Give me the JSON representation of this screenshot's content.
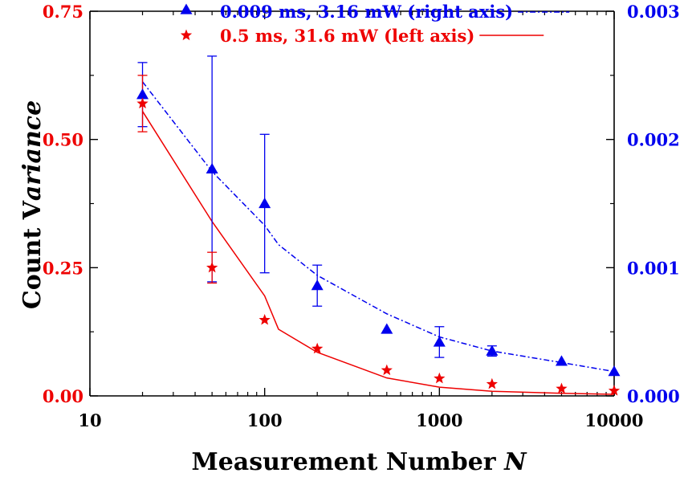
{
  "chart_data": {
    "type": "scatter",
    "xscale": "log",
    "x": [
      20,
      50,
      100,
      200,
      500,
      1000,
      2000,
      5000,
      10000
    ],
    "xlim": [
      10,
      10000
    ],
    "x_tick_labels": [
      "10",
      "100",
      "1000",
      "10000"
    ],
    "xlabel": "Measurement Number",
    "xlabel_symbol": "N",
    "ylabel_left_main": "Count V",
    "ylabel_left_italic": "ariance",
    "ylim_left": [
      0,
      0.75
    ],
    "left_tick_labels": [
      "0.00",
      "0.25",
      "0.50",
      "0.75"
    ],
    "ylim_right": [
      0,
      0.003
    ],
    "right_tick_labels": [
      "0.000",
      "0.001",
      "0.002",
      "0.003"
    ],
    "series": [
      {
        "name": "0.009 ms, 3.16 mW (right axis)",
        "axis": "right",
        "marker": "triangle",
        "color": "#0000ee",
        "values": [
          0.00235,
          0.00177,
          0.0015,
          0.00086,
          0.00052,
          0.00042,
          0.00035,
          0.00027,
          0.00019
        ],
        "error": [
          0.00025,
          0.00088,
          0.00054,
          0.00016,
          0.0,
          0.00012,
          4e-05,
          0.0,
          0.0
        ],
        "fit": {
          "style": "dash-dot",
          "x": [
            20,
            50,
            100,
            120,
            200,
            500,
            1000,
            2000,
            5000,
            10000
          ],
          "y": [
            0.00245,
            0.00175,
            0.00133,
            0.00118,
            0.00094,
            0.00064,
            0.00046,
            0.00035,
            0.00026,
            0.00019
          ]
        }
      },
      {
        "name": "0.5 ms, 31.6 mW (left axis)",
        "axis": "left",
        "marker": "star",
        "color": "#ee0000",
        "values": [
          0.57,
          0.25,
          0.148,
          0.092,
          0.05,
          0.034,
          0.023,
          0.014,
          0.01
        ],
        "error": [
          0.055,
          0.03,
          0.0,
          0.0,
          0.0,
          0.0,
          0.0,
          0.0,
          0.0
        ],
        "fit": {
          "style": "solid",
          "x": [
            20,
            50,
            100,
            120,
            200,
            500,
            1000,
            2000,
            5000,
            10000
          ],
          "y": [
            0.555,
            0.34,
            0.195,
            0.13,
            0.085,
            0.035,
            0.017,
            0.009,
            0.005,
            0.003
          ]
        }
      }
    ],
    "legend_position": "top",
    "colors": {
      "left_axis": "#ee0000",
      "right_axis": "#0000ee",
      "frame": "#000000"
    }
  }
}
